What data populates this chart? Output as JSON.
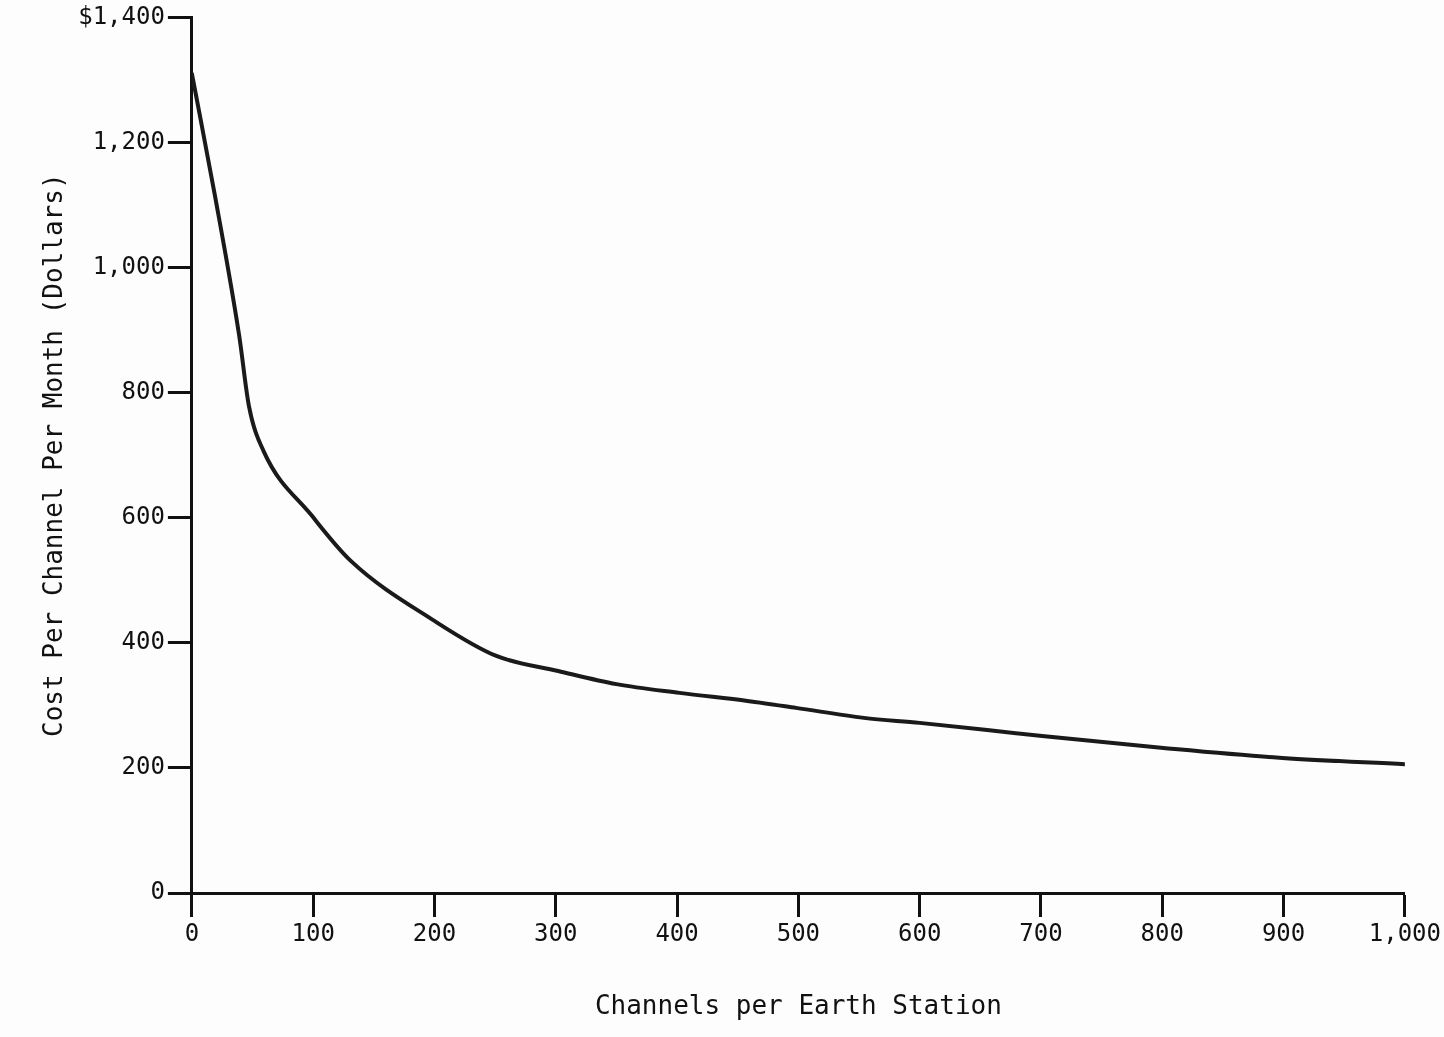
{
  "chart_data": {
    "type": "line",
    "xlabel": "Channels per Earth Station",
    "ylabel": "Cost Per Channel Per Month (Dollars)",
    "xlim": [
      0,
      1000
    ],
    "ylim": [
      0,
      1400
    ],
    "xticks": [
      0,
      100,
      200,
      300,
      400,
      500,
      600,
      700,
      800,
      900,
      {
        "value": 1000,
        "label": "1,000"
      }
    ],
    "yticks": [
      0,
      200,
      400,
      600,
      800,
      {
        "value": 1000,
        "label": "1,000"
      },
      {
        "value": 1200,
        "label": "1,200"
      },
      {
        "value": 1400,
        "label": "$1,400"
      }
    ],
    "grid": false,
    "legend": false,
    "marker": "none",
    "line_style": "solid",
    "series": [
      {
        "color": "#1a1a1a",
        "x": [
          0,
          19,
          39,
          47,
          59,
          99,
          131,
          200,
          251,
          302,
          350,
          402,
          458,
          498,
          554,
          600,
          701,
          801,
          899,
          1000
        ],
        "values": [
          1310,
          1115,
          891,
          779,
          707,
          603,
          531,
          435,
          379,
          355,
          334,
          320,
          307,
          296,
          280,
          272,
          251,
          232,
          216,
          206
        ]
      }
    ]
  }
}
